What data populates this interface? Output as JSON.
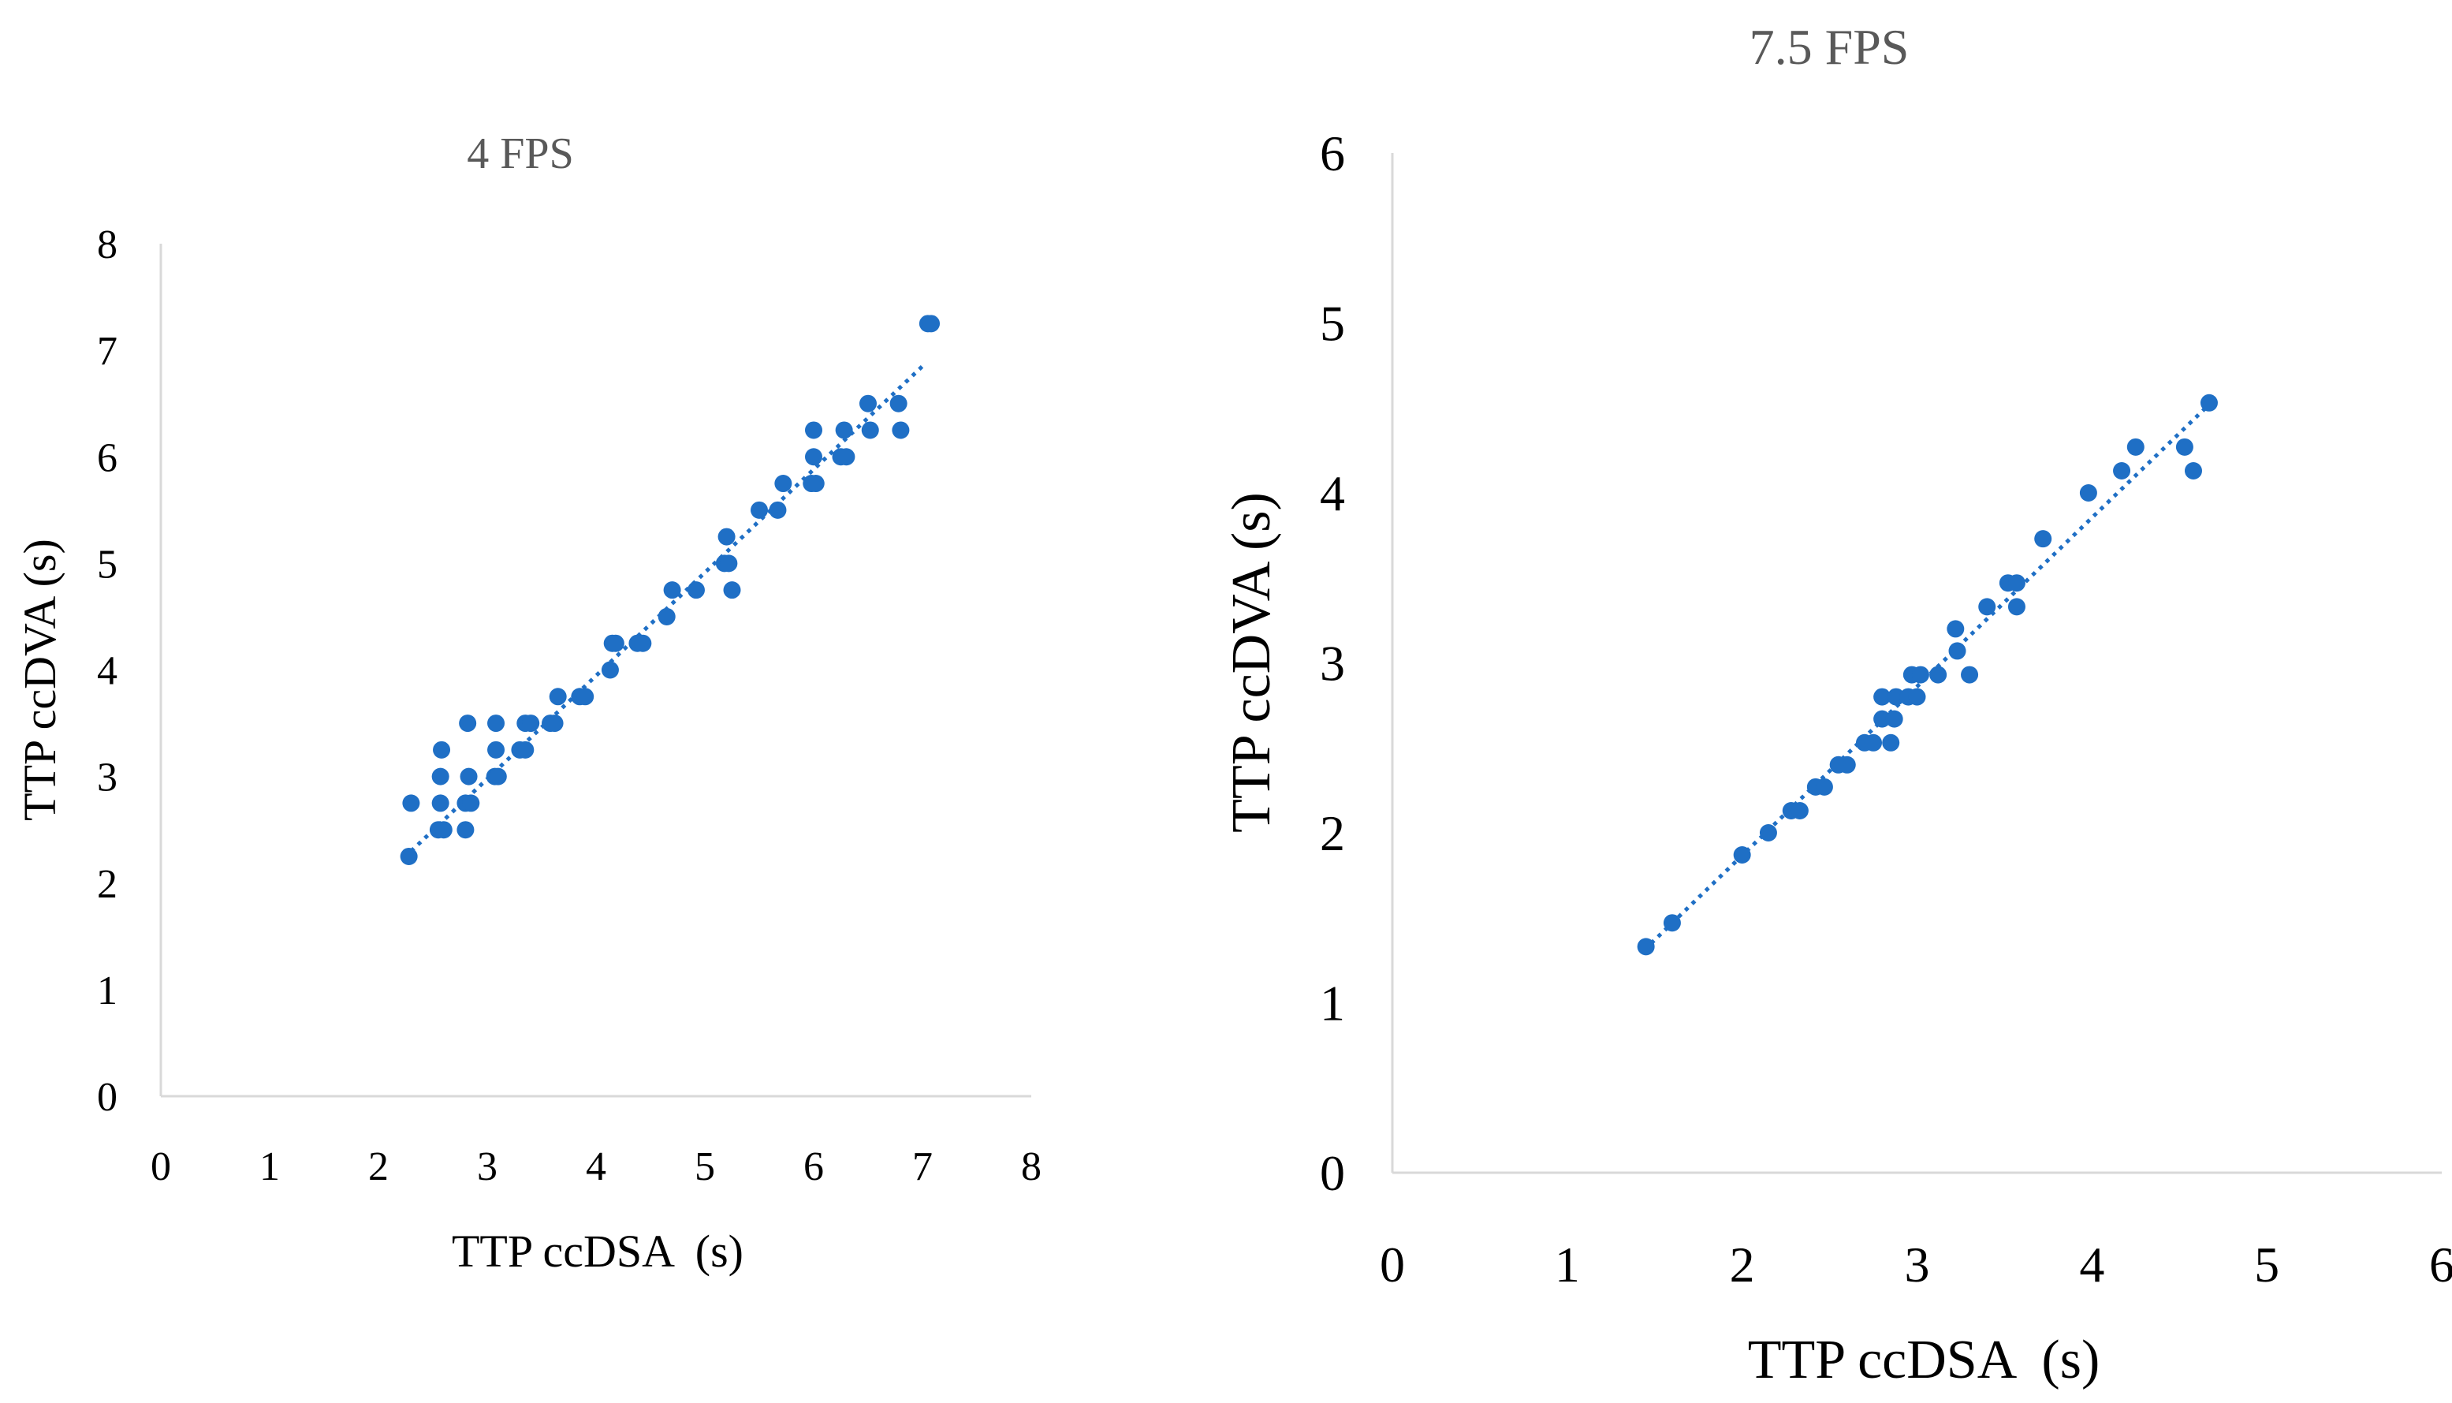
{
  "chart_data": [
    {
      "type": "scatter",
      "title": "4 FPS",
      "xlabel": "TTP ccDSA  (s)",
      "ylabel": "TTP ccDVA (s)",
      "xlim": [
        0,
        8
      ],
      "ylim": [
        0,
        8
      ],
      "x_ticks": [
        "0",
        "1",
        "2",
        "3",
        "4",
        "5",
        "6",
        "7",
        "8"
      ],
      "y_ticks": [
        "0",
        "1",
        "2",
        "3",
        "4",
        "5",
        "6",
        "7",
        "8"
      ],
      "grid": false,
      "marker_color": "#1f6fc5",
      "trendline": {
        "style": "dotted",
        "x": [
          2.3,
          7.0
        ],
        "y": [
          2.3,
          6.85
        ]
      },
      "points": [
        [
          2.28,
          2.25
        ],
        [
          2.3,
          2.75
        ],
        [
          2.55,
          2.5
        ],
        [
          2.57,
          2.75
        ],
        [
          2.57,
          3.0
        ],
        [
          2.58,
          3.25
        ],
        [
          2.6,
          2.5
        ],
        [
          2.8,
          2.5
        ],
        [
          2.8,
          2.75
        ],
        [
          2.83,
          3.0
        ],
        [
          2.82,
          3.5
        ],
        [
          2.85,
          2.75
        ],
        [
          3.07,
          3.0
        ],
        [
          3.08,
          3.25
        ],
        [
          3.08,
          3.5
        ],
        [
          3.1,
          3.0
        ],
        [
          3.3,
          3.25
        ],
        [
          3.35,
          3.25
        ],
        [
          3.35,
          3.5
        ],
        [
          3.4,
          3.5
        ],
        [
          3.58,
          3.5
        ],
        [
          3.62,
          3.5
        ],
        [
          3.65,
          3.75
        ],
        [
          3.85,
          3.75
        ],
        [
          3.9,
          3.75
        ],
        [
          4.13,
          4.0
        ],
        [
          4.15,
          4.25
        ],
        [
          4.18,
          4.25
        ],
        [
          4.38,
          4.25
        ],
        [
          4.43,
          4.25
        ],
        [
          4.65,
          4.5
        ],
        [
          4.7,
          4.75
        ],
        [
          4.92,
          4.75
        ],
        [
          5.18,
          5.0
        ],
        [
          5.2,
          5.25
        ],
        [
          5.22,
          5.0
        ],
        [
          5.25,
          4.75
        ],
        [
          5.5,
          5.5
        ],
        [
          5.67,
          5.5
        ],
        [
          5.72,
          5.75
        ],
        [
          5.98,
          5.75
        ],
        [
          6.0,
          6.0
        ],
        [
          6.0,
          6.25
        ],
        [
          6.02,
          5.75
        ],
        [
          6.25,
          6.0
        ],
        [
          6.28,
          6.25
        ],
        [
          6.3,
          6.0
        ],
        [
          6.5,
          6.5
        ],
        [
          6.52,
          6.25
        ],
        [
          6.78,
          6.5
        ],
        [
          6.8,
          6.25
        ],
        [
          7.05,
          7.25
        ],
        [
          7.08,
          7.25
        ]
      ]
    },
    {
      "type": "scatter",
      "title": "7.5 FPS",
      "xlabel": "TTP ccDSA  (s)",
      "ylabel": "TTP ccDVA (s)",
      "xlim": [
        0,
        6
      ],
      "ylim": [
        0,
        6
      ],
      "x_ticks": [
        "0",
        "1",
        "2",
        "3",
        "4",
        "5",
        "6"
      ],
      "y_ticks": [
        "0",
        "1",
        "2",
        "3",
        "4",
        "5",
        "6"
      ],
      "grid": false,
      "marker_color": "#1f6fc5",
      "trendline": {
        "style": "dotted",
        "x": [
          1.48,
          4.65
        ],
        "y": [
          1.35,
          4.5
        ]
      },
      "points": [
        [
          1.45,
          1.33
        ],
        [
          1.6,
          1.47
        ],
        [
          2.0,
          1.87
        ],
        [
          2.15,
          2.0
        ],
        [
          2.28,
          2.13
        ],
        [
          2.33,
          2.13
        ],
        [
          2.42,
          2.27
        ],
        [
          2.47,
          2.27
        ],
        [
          2.55,
          2.4
        ],
        [
          2.6,
          2.4
        ],
        [
          2.7,
          2.53
        ],
        [
          2.75,
          2.53
        ],
        [
          2.8,
          2.67
        ],
        [
          2.8,
          2.8
        ],
        [
          2.85,
          2.53
        ],
        [
          2.87,
          2.67
        ],
        [
          2.88,
          2.8
        ],
        [
          2.95,
          2.8
        ],
        [
          2.97,
          2.93
        ],
        [
          3.0,
          2.8
        ],
        [
          3.02,
          2.93
        ],
        [
          3.12,
          2.93
        ],
        [
          3.22,
          3.2
        ],
        [
          3.23,
          3.07
        ],
        [
          3.3,
          2.93
        ],
        [
          3.4,
          3.33
        ],
        [
          3.52,
          3.47
        ],
        [
          3.57,
          3.47
        ],
        [
          3.57,
          3.33
        ],
        [
          3.72,
          3.73
        ],
        [
          3.98,
          4.0
        ],
        [
          4.17,
          4.13
        ],
        [
          4.25,
          4.27
        ],
        [
          4.53,
          4.27
        ],
        [
          4.58,
          4.13
        ],
        [
          4.67,
          4.53
        ]
      ]
    }
  ]
}
